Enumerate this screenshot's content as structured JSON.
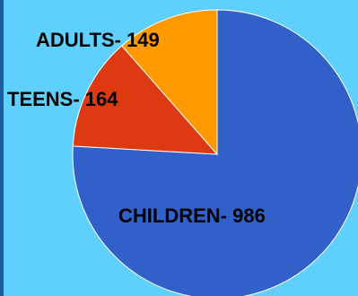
{
  "chart_data": {
    "type": "pie",
    "slices": [
      {
        "label": "CHILDREN",
        "value": 986,
        "color": "#3060c8",
        "text": "CHILDREN- 986"
      },
      {
        "label": "TEENS",
        "value": 164,
        "color": "#de3a12",
        "text": "TEENS- 164"
      },
      {
        "label": "ADULTS",
        "value": 149,
        "color": "#ff9900",
        "text": "ADULTS- 149"
      }
    ],
    "title": "",
    "legend": "none"
  },
  "colors": {
    "background": "#5fd0fb",
    "edge": "#1a5c9e"
  }
}
